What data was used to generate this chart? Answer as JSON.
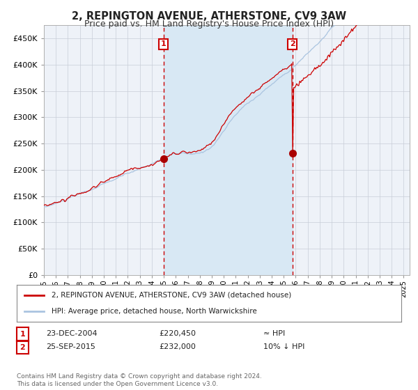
{
  "title": "2, REPINGTON AVENUE, ATHERSTONE, CV9 3AW",
  "subtitle": "Price paid vs. HM Land Registry's House Price Index (HPI)",
  "title_fontsize": 10.5,
  "subtitle_fontsize": 9,
  "hpi_label": "HPI: Average price, detached house, North Warwickshire",
  "property_label": "2, REPINGTON AVENUE, ATHERSTONE, CV9 3AW (detached house)",
  "hpi_color": "#aac4e0",
  "property_color": "#cc0000",
  "background_color": "#ffffff",
  "plot_bg_color": "#eef2f8",
  "shade_color": "#d8e8f4",
  "grid_color": "#c8cdd8",
  "ylim": [
    0,
    475000
  ],
  "yticks": [
    0,
    50000,
    100000,
    150000,
    200000,
    250000,
    300000,
    350000,
    400000,
    450000
  ],
  "sale1_date": "23-DEC-2004",
  "sale1_value": 220450,
  "sale1_x": 2004.98,
  "sale2_date": "25-SEP-2015",
  "sale2_value": 232000,
  "sale2_x": 2015.73,
  "marker_color": "#aa0000",
  "marker_size": 7,
  "vline_color": "#cc0000",
  "box_color": "#cc0000",
  "footnote": "Contains HM Land Registry data © Crown copyright and database right 2024.\nThis data is licensed under the Open Government Licence v3.0.",
  "footnote_fontsize": 6.5,
  "xmin": 1995,
  "xmax": 2025.5
}
